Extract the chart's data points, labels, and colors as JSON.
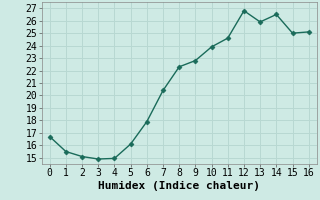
{
  "x": [
    0,
    1,
    2,
    3,
    4,
    5,
    6,
    7,
    8,
    9,
    10,
    11,
    12,
    13,
    14,
    15,
    16
  ],
  "y": [
    16.7,
    15.5,
    15.1,
    14.9,
    14.95,
    16.1,
    17.9,
    20.4,
    22.3,
    22.8,
    23.9,
    24.6,
    26.8,
    25.9,
    26.5,
    25.0,
    25.1
  ],
  "xlabel": "Humidex (Indice chaleur)",
  "ylim": [
    14.5,
    27.5
  ],
  "xlim": [
    -0.5,
    16.5
  ],
  "yticks": [
    15,
    16,
    17,
    18,
    19,
    20,
    21,
    22,
    23,
    24,
    25,
    26,
    27
  ],
  "xticks": [
    0,
    1,
    2,
    3,
    4,
    5,
    6,
    7,
    8,
    9,
    10,
    11,
    12,
    13,
    14,
    15,
    16
  ],
  "line_color": "#1a6b5a",
  "marker_color": "#1a6b5a",
  "bg_color": "#ceeae4",
  "grid_color": "#b8d8d2",
  "xlabel_fontsize": 8,
  "tick_fontsize": 7
}
